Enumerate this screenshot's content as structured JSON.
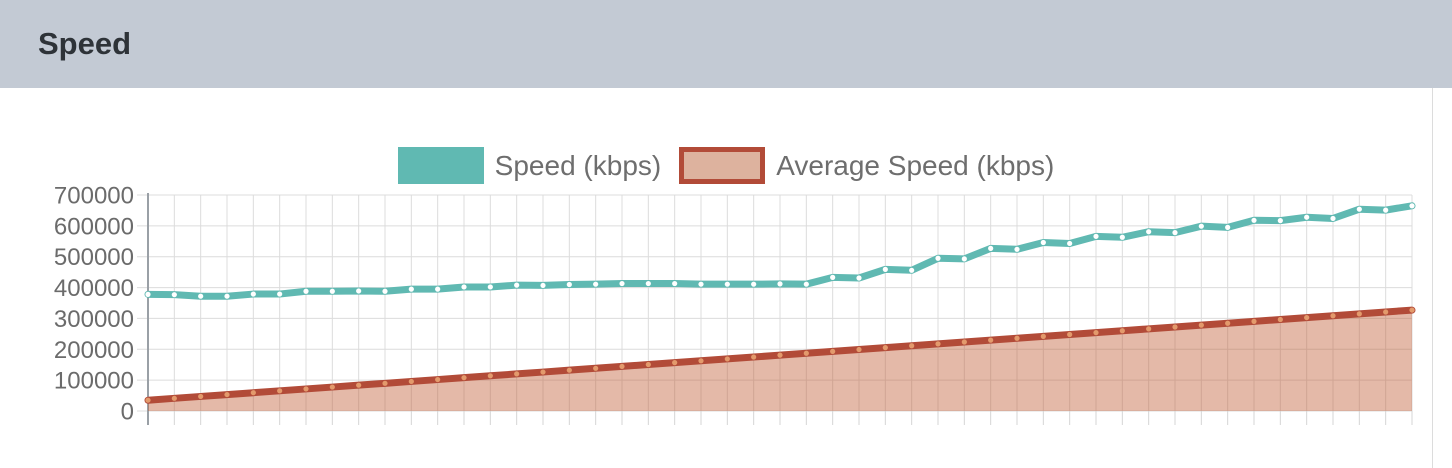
{
  "header": {
    "title": "Speed"
  },
  "legend": {
    "items": [
      {
        "label": "Speed (kbps)"
      },
      {
        "label": "Average Speed (kbps)"
      }
    ]
  },
  "colors": {
    "header_bg": "#c3cad4",
    "speed_line": "#60b9b2",
    "speed_marker": "#ffffff",
    "avg_line": "#b24b38",
    "avg_fill": "rgba(190,88,48,0.42)",
    "avg_marker": "#e39a6c",
    "avg_swatch_fill": "#ddb29e",
    "grid": "#dcdcdc",
    "axis": "#9aa0a6",
    "tick_text": "#6b6b6b"
  },
  "chart_data": {
    "type": "line",
    "title": "Speed",
    "legend_position": "top",
    "grid": true,
    "x_axis": {
      "labels_visible": false,
      "point_count": 49
    },
    "y_axis": {
      "min": 0,
      "max": 700000,
      "tick_step": 100000,
      "tick_labels": [
        "700000",
        "600000",
        "500000",
        "400000",
        "300000",
        "200000",
        "100000",
        "0"
      ]
    },
    "series": [
      {
        "name": "Speed (kbps)",
        "style": "line",
        "values": [
          378000,
          377000,
          372000,
          372000,
          379000,
          379000,
          388000,
          388000,
          389000,
          388000,
          395000,
          395000,
          402000,
          402000,
          408000,
          407000,
          410000,
          411000,
          413000,
          413000,
          413000,
          411000,
          411000,
          411000,
          412000,
          411000,
          433000,
          431000,
          459000,
          456000,
          495000,
          493000,
          527000,
          524000,
          546000,
          543000,
          566000,
          563000,
          581000,
          578000,
          599000,
          595000,
          618000,
          617000,
          628000,
          624000,
          654000,
          651000,
          665000
        ]
      },
      {
        "name": "Average Speed (kbps)",
        "style": "area",
        "values": [
          35000,
          41100,
          47200,
          53200,
          59300,
          65400,
          71500,
          77600,
          83700,
          89700,
          95800,
          101900,
          108000,
          114100,
          120200,
          126200,
          132300,
          138400,
          144500,
          150600,
          156700,
          162700,
          168800,
          174900,
          181000,
          187100,
          193200,
          199200,
          205300,
          211400,
          217500,
          223600,
          229700,
          235700,
          241800,
          247900,
          254000,
          260100,
          266200,
          272200,
          278300,
          284400,
          290500,
          296600,
          302700,
          308700,
          314800,
          320900,
          327000
        ]
      }
    ]
  }
}
